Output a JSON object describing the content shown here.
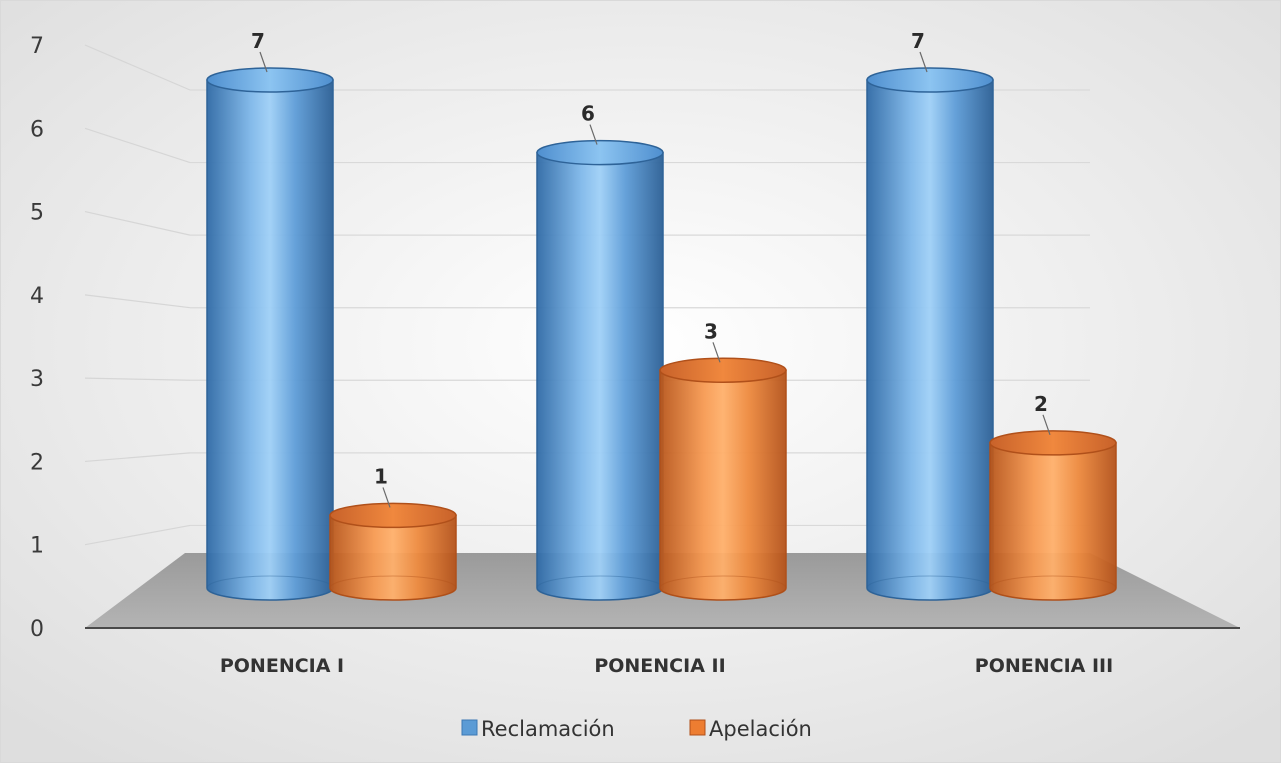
{
  "chart_data": {
    "type": "bar",
    "style": "3d-cylinder",
    "categories": [
      "PONENCIA I",
      "PONENCIA II",
      "PONENCIA III"
    ],
    "series": [
      {
        "name": "Reclamación",
        "values": [
          7,
          6,
          7
        ],
        "color": "#5b9bd5"
      },
      {
        "name": "Apelación",
        "values": [
          1,
          3,
          2
        ],
        "color": "#ed7d31"
      }
    ],
    "yticks": [
      "0",
      "1",
      "2",
      "3",
      "4",
      "5",
      "6",
      "7"
    ],
    "ylim": [
      0,
      7
    ],
    "grid": true,
    "legend_position": "bottom",
    "data_labels": true,
    "title": "",
    "xlabel": "",
    "ylabel": ""
  }
}
